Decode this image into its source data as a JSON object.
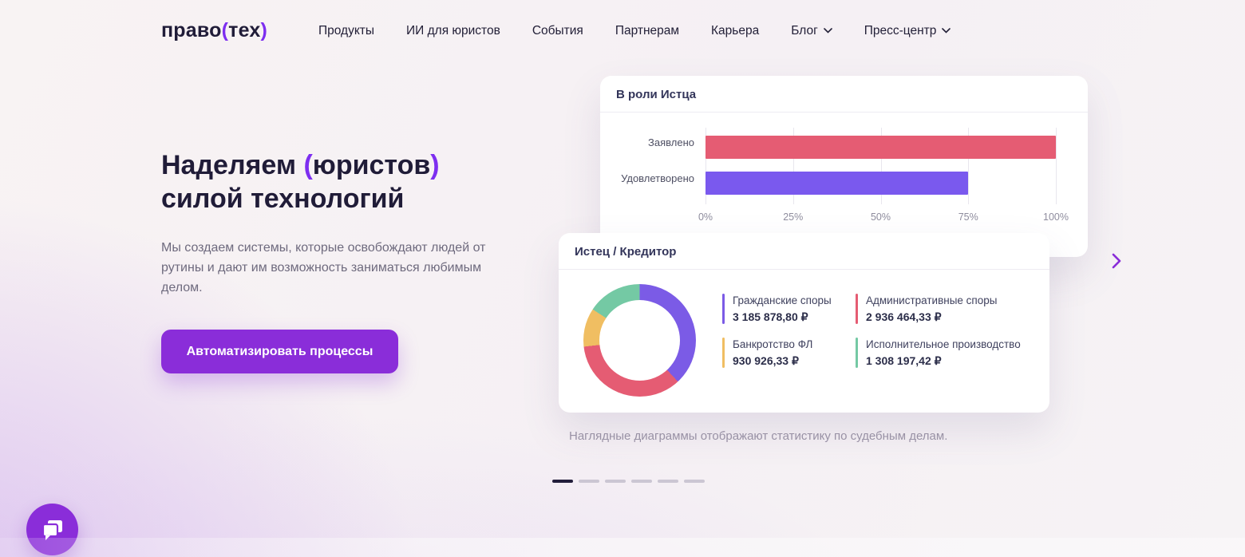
{
  "nav": {
    "logo": {
      "text_main": "право",
      "bracket_open": "(",
      "text_inner": "тех",
      "bracket_close": ")"
    },
    "items": [
      {
        "label": "Продукты",
        "dropdown": false
      },
      {
        "label": "ИИ для юристов",
        "dropdown": false
      },
      {
        "label": "События",
        "dropdown": false
      },
      {
        "label": "Партнерам",
        "dropdown": false
      },
      {
        "label": "Карьера",
        "dropdown": false
      },
      {
        "label": "Блог",
        "dropdown": true
      },
      {
        "label": "Пресс-центр",
        "dropdown": true
      }
    ]
  },
  "hero": {
    "title": {
      "part1": "Наделяем ",
      "bracket_open": "(",
      "highlight": "юристов",
      "bracket_close": ")",
      "line2": "силой технологий"
    },
    "description": "Мы создаем системы, которые освобождают людей от рутины и дают им возможность заниматься любимым делом.",
    "cta_label": "Автоматизировать процессы"
  },
  "chart_data": [
    {
      "type": "bar",
      "title": "В роли Истца",
      "orientation": "horizontal",
      "categories": [
        "Заявлено",
        "Удовлетворено"
      ],
      "values": [
        100,
        75
      ],
      "bar_colors": [
        "#e55c73",
        "#7a59ee"
      ],
      "xticks": [
        "0%",
        "25%",
        "50%",
        "75%",
        "100%"
      ],
      "xlim": [
        0,
        100
      ],
      "grid": true,
      "legend_position": "none"
    },
    {
      "type": "donut",
      "title": "Истец / Кредитор",
      "start_angle_deg": 0,
      "direction": "clockwise",
      "segments": [
        {
          "label": "Гражданские споры",
          "value_text": "3 185 878,80 ₽",
          "value": 3185878.8,
          "percent": 38.1,
          "color": "#7b5be6"
        },
        {
          "label": "Административные споры",
          "value_text": "2 936 464,33 ₽",
          "value": 2936464.33,
          "percent": 35.1,
          "color": "#e55c73"
        },
        {
          "label": "Банкротство ФЛ",
          "value_text": "930 926,33 ₽",
          "value": 930926.33,
          "percent": 11.1,
          "color": "#f0be62"
        },
        {
          "label": "Исполнительное производство",
          "value_text": "1 308 197,42 ₽",
          "value": 1308197.42,
          "percent": 15.6,
          "color": "#74c9a4"
        }
      ]
    }
  ],
  "carousel": {
    "caption": "Наглядные диаграммы отображают статистику по судебным делам.",
    "dot_count": 6,
    "active_dot": 0
  },
  "colors": {
    "accent_purple": "#8a2dd9",
    "bracket_purple": "#7d2ef0",
    "heading_text": "#201c38",
    "muted_text": "#6e6a7e",
    "caption_text": "#9c95a7"
  }
}
